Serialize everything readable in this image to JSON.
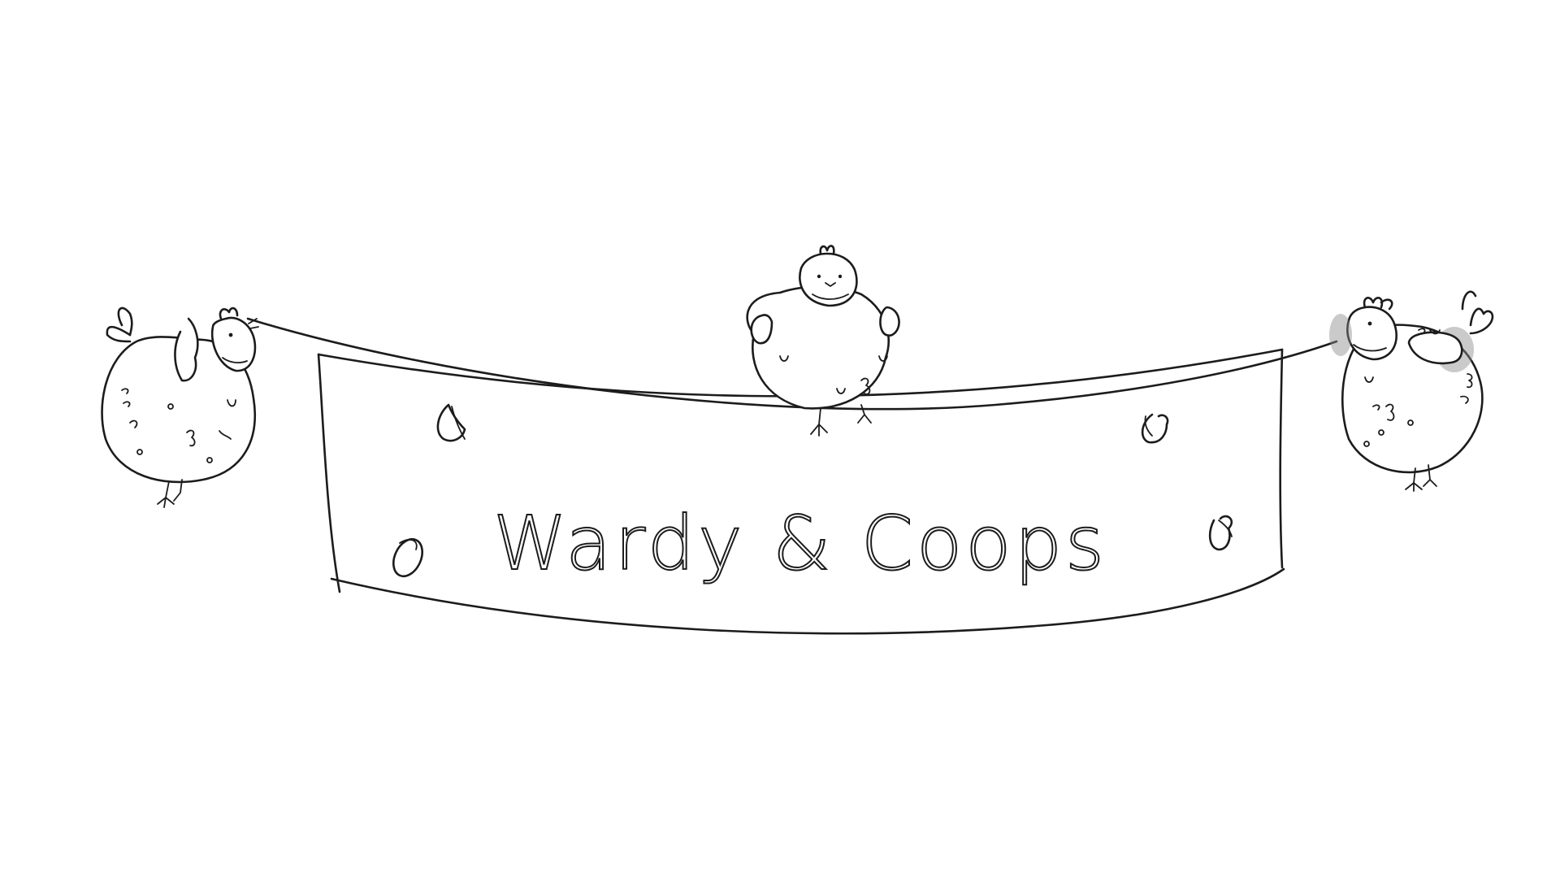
{
  "banner": {
    "text": "Wardy & Coops"
  },
  "colors": {
    "ink": "#1c1c1c",
    "background": "#ffffff"
  },
  "illustration": {
    "subjects": [
      "hen-left",
      "hen-center",
      "hen-right"
    ],
    "seed_icons": [
      "seed-icon",
      "heart-seed-icon",
      "oval-seed-icon"
    ]
  }
}
